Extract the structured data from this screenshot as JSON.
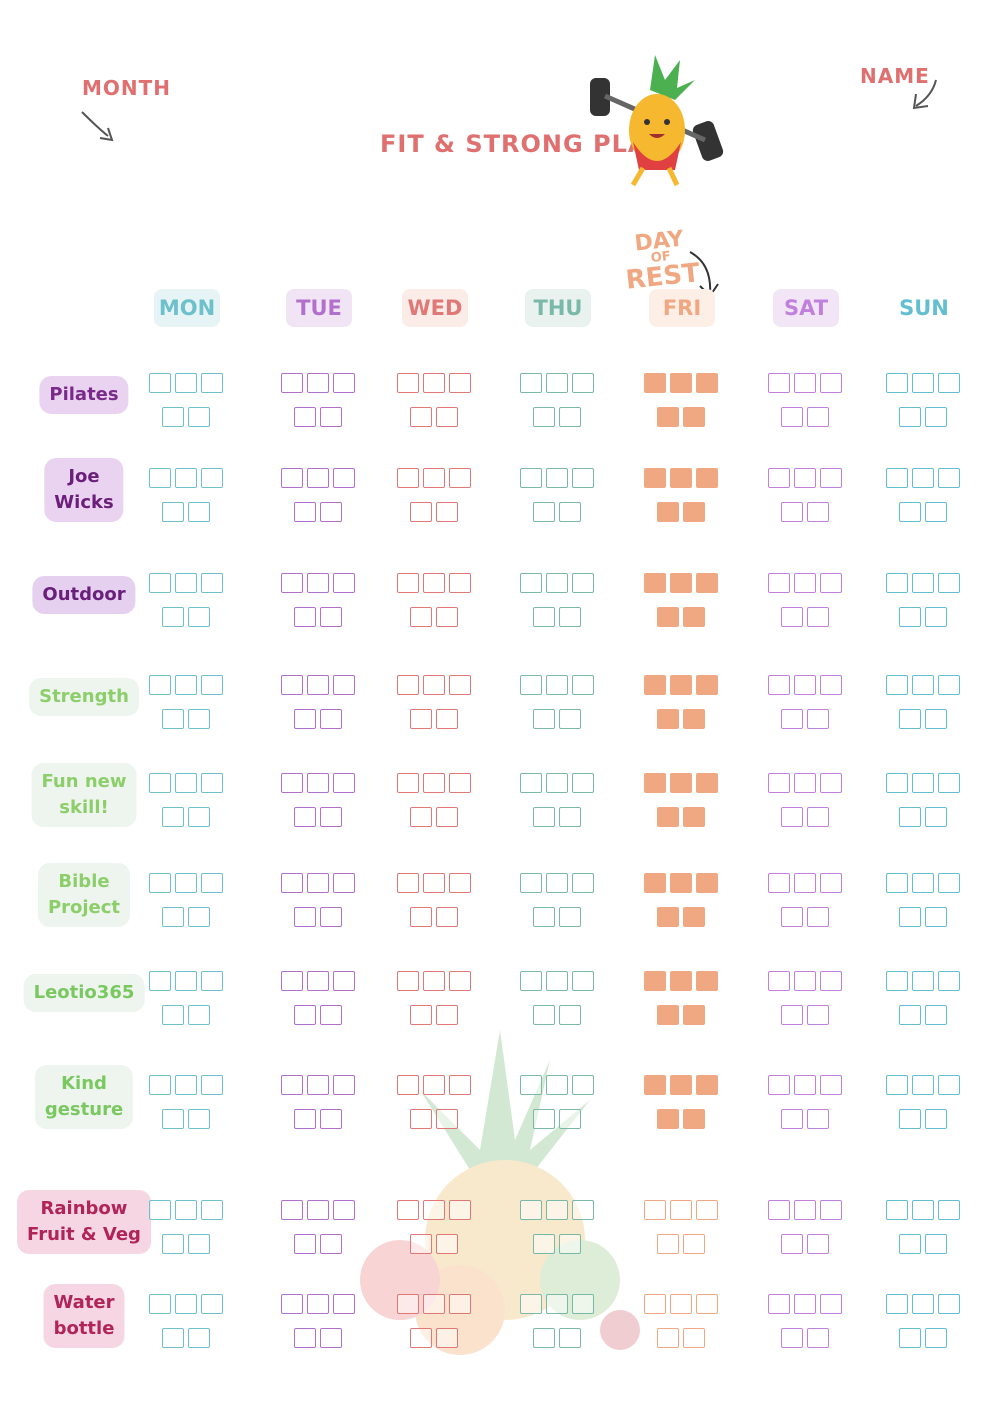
{
  "header": {
    "month": "MONTH",
    "name": "NAME",
    "title": "FIT & STRONG PLAN!"
  },
  "rest_note": [
    "DAY",
    "OF",
    "REST"
  ],
  "days": [
    "MON",
    "TUE",
    "WED",
    "THU",
    "FRI",
    "SAT",
    "SUN"
  ],
  "activities": [
    [
      "Pilates"
    ],
    [
      "Joe",
      "Wicks"
    ],
    [
      "Outdoor"
    ],
    [
      "Strength"
    ],
    [
      "Fun new",
      "skill!"
    ],
    [
      "Bible",
      "Project"
    ],
    [
      "Leotio365"
    ],
    [
      "Kind",
      "gesture"
    ],
    [
      "Rainbow",
      "Fruit & Veg"
    ],
    [
      "Water",
      "bottle"
    ]
  ]
}
